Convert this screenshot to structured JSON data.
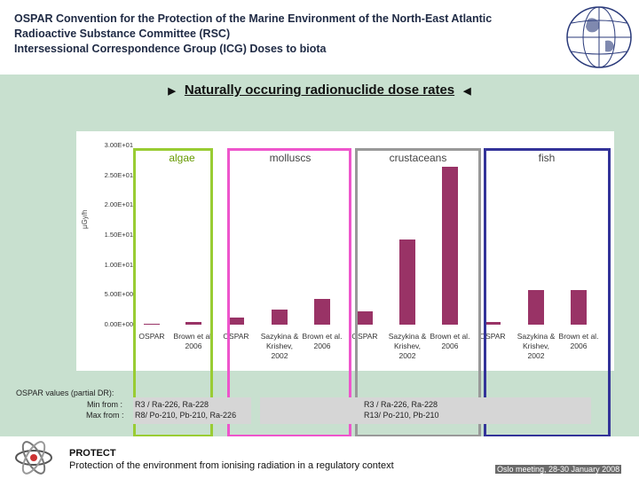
{
  "header": {
    "line1": "OSPAR Convention for the Protection of the Marine Environment of the North-East Atlantic",
    "line2": "Radioactive Substance Committee (RSC)",
    "line3": "Intersessional Correspondence Group (ICG) Doses to biota"
  },
  "slide_title": "Naturally occuring radionuclide dose rates",
  "colors": {
    "bar": "#993366",
    "algae": "#99cc33",
    "molluscs": "#ee55cc",
    "crustaceans": "#999999",
    "fish": "#333399",
    "panel": "#c8e0cf"
  },
  "chart_data": {
    "type": "bar",
    "ylabel": "µGy/h",
    "yticks": [
      "3.00E+01",
      "2.50E+01",
      "2.00E+01",
      "1.50E+01",
      "1.00E+01",
      "5.00E+00",
      "0.00E+00"
    ],
    "ylim": [
      0,
      30
    ],
    "groups": [
      {
        "name": "algae",
        "bars": [
          {
            "label": "OSPAR",
            "value": 0.1
          },
          {
            "label": "Brown et al. 2006",
            "value": 0.5
          }
        ]
      },
      {
        "name": "molluscs",
        "bars": [
          {
            "label": "OSPAR",
            "value": 1.2
          },
          {
            "label": "Sazykina & Krishev, 2002",
            "value": 2.5
          },
          {
            "label": "Brown et al. 2006",
            "value": 4.3
          }
        ]
      },
      {
        "name": "crustaceans",
        "bars": [
          {
            "label": "OSPAR",
            "value": 2.2
          },
          {
            "label": "Sazykina & Krishev, 2002",
            "value": 14.2
          },
          {
            "label": "Brown et al. 2006",
            "value": 26.5
          }
        ]
      },
      {
        "name": "fish",
        "bars": [
          {
            "label": "OSPAR",
            "value": 0.5
          },
          {
            "label": "Sazykina & Krishev, 2002",
            "value": 5.8
          },
          {
            "label": "Brown et al. 2006",
            "value": 5.8
          }
        ]
      }
    ]
  },
  "ospar_values": {
    "heading": "OSPAR values (partial DR):",
    "min_label": "Min from :",
    "max_label": "Max from :",
    "min_left": "R3 / Ra-226, Ra-228",
    "max_left": "R8/ Po-210, Pb-210, Ra-226",
    "min_right": "R3 / Ra-226, Ra-228",
    "max_right": "R13/ Po-210, Pb-210"
  },
  "footer": {
    "protect": "PROTECT",
    "tagline": "Protection of the environment from ionising radiation in a regulatory context",
    "meeting": "Oslo meeting, 28-30 January 2008"
  }
}
